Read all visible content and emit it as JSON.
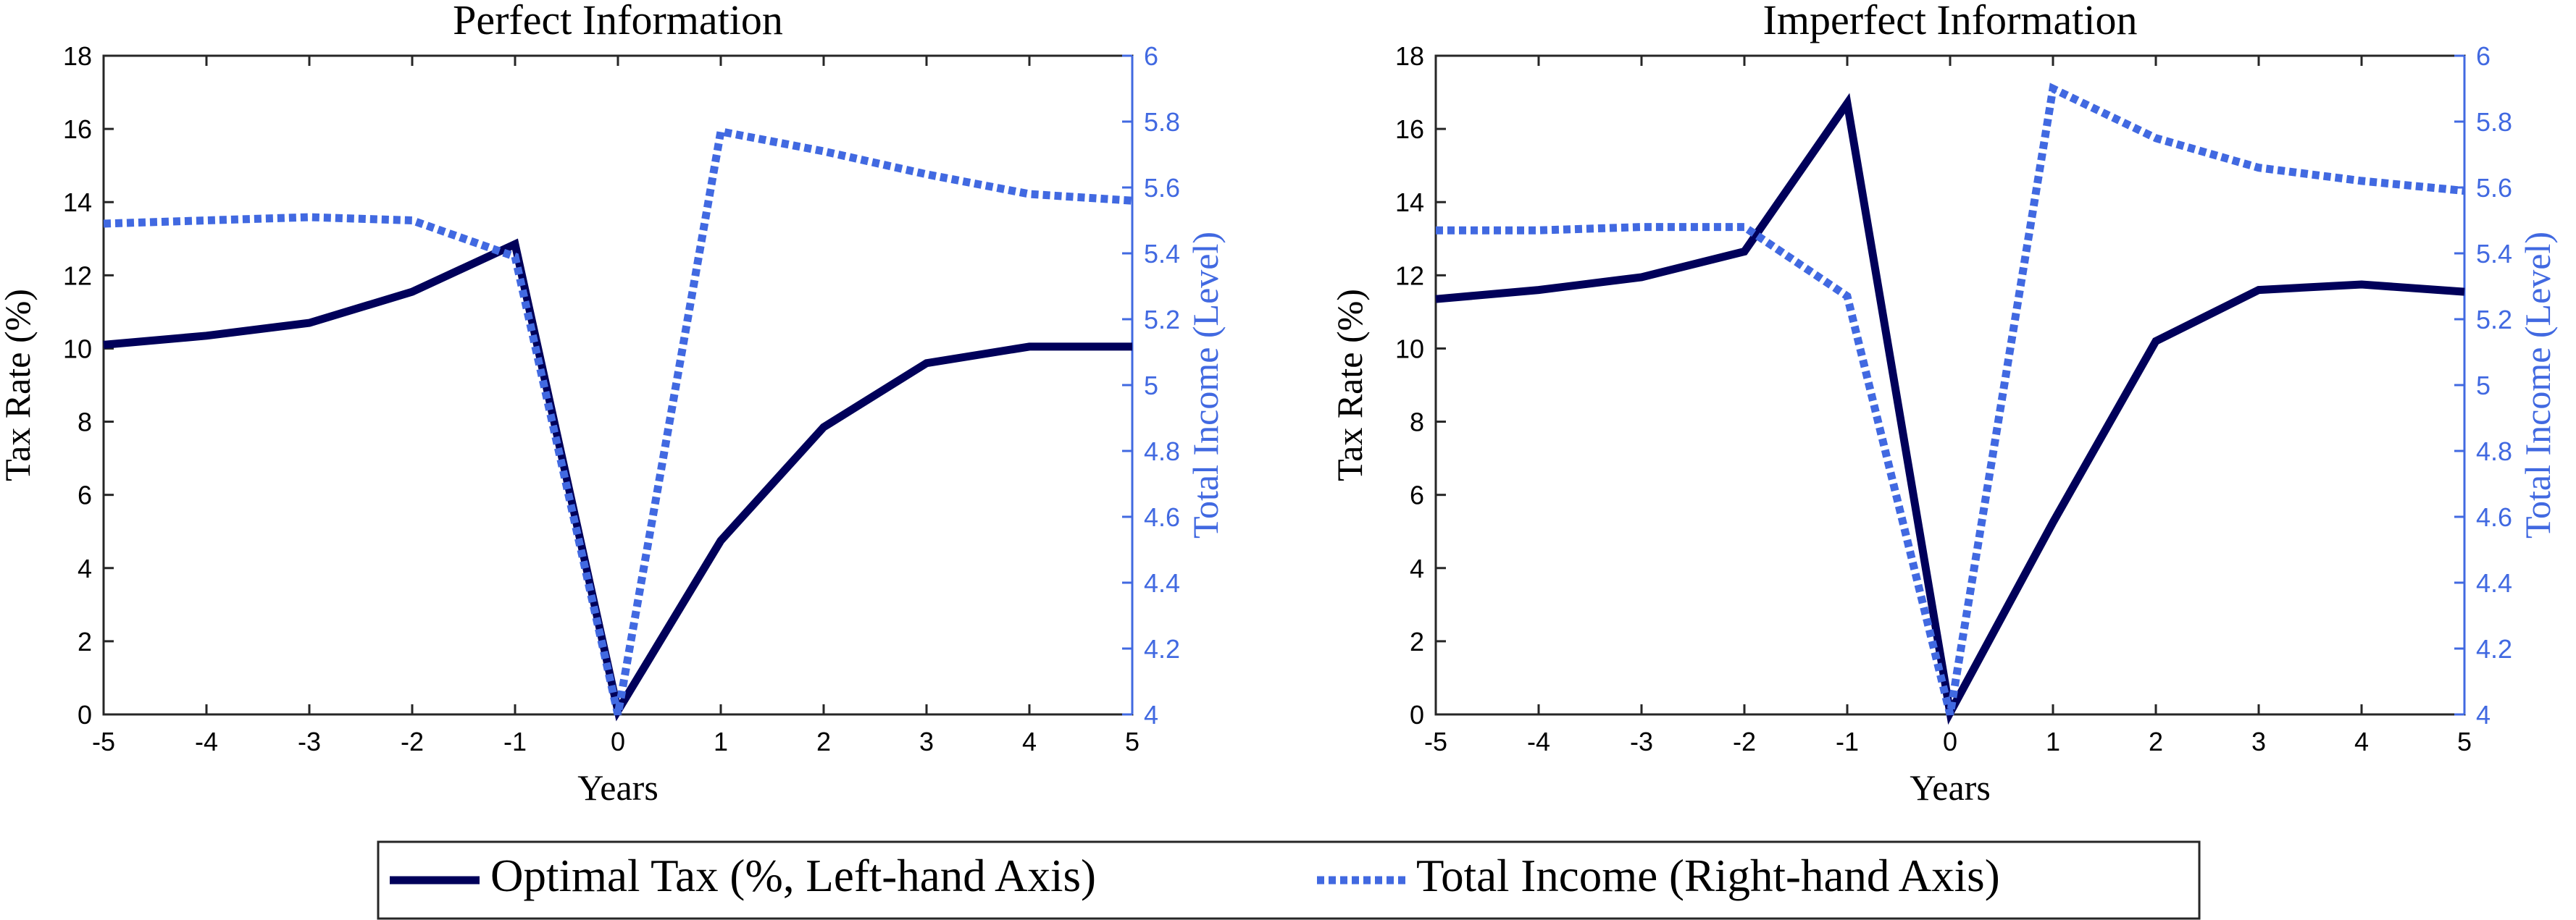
{
  "colors": {
    "tax": "#00005a",
    "income": "#4169e1",
    "axis": "#262626",
    "text": "#000000"
  },
  "legend": {
    "tax_label": "Optimal Tax (%, Left-hand Axis)",
    "income_label": "Total Income (Right-hand Axis)"
  },
  "chart_data": [
    {
      "type": "line",
      "title": "Perfect Information",
      "xlabel": "Years",
      "ylabel": "Tax Rate (%)",
      "y2label": "Total Income (Level)",
      "xlim": [
        -5,
        5
      ],
      "ylim": [
        0,
        18
      ],
      "y2lim": [
        4,
        6
      ],
      "x_ticks": [
        "-5",
        "-4",
        "-3",
        "-2",
        "-1",
        "0",
        "1",
        "2",
        "3",
        "4",
        "5"
      ],
      "y_ticks": [
        "0",
        "2",
        "4",
        "6",
        "8",
        "10",
        "12",
        "14",
        "16",
        "18"
      ],
      "y2_ticks": [
        "4",
        "4.2",
        "4.4",
        "4.6",
        "4.8",
        "5",
        "5.2",
        "5.4",
        "5.6",
        "5.8",
        "6"
      ],
      "x": [
        -5,
        -4,
        -3,
        -2,
        -1,
        0,
        1,
        2,
        3,
        4,
        5
      ],
      "series": [
        {
          "name": "Optimal Tax (%, Left-hand Axis)",
          "axis": "left",
          "style": "solid",
          "values": [
            10.1,
            10.35,
            10.7,
            11.55,
            12.85,
            0.1,
            4.75,
            7.85,
            9.6,
            10.05,
            10.05
          ]
        },
        {
          "name": "Total Income (Right-hand Axis)",
          "axis": "right",
          "style": "dotted",
          "values": [
            5.49,
            5.5,
            5.51,
            5.5,
            5.39,
            4.0,
            5.77,
            5.71,
            5.64,
            5.58,
            5.56
          ]
        }
      ]
    },
    {
      "type": "line",
      "title": "Imperfect Information",
      "xlabel": "Years",
      "ylabel": "Tax Rate (%)",
      "y2label": "Total Income (Level)",
      "xlim": [
        -5,
        5
      ],
      "ylim": [
        0,
        18
      ],
      "y2lim": [
        4,
        6
      ],
      "x_ticks": [
        "-5",
        "-4",
        "-3",
        "-2",
        "-1",
        "0",
        "1",
        "2",
        "3",
        "4",
        "5"
      ],
      "y_ticks": [
        "0",
        "2",
        "4",
        "6",
        "8",
        "10",
        "12",
        "14",
        "16",
        "18"
      ],
      "y2_ticks": [
        "4",
        "4.2",
        "4.4",
        "4.6",
        "4.8",
        "5",
        "5.2",
        "5.4",
        "5.6",
        "5.8",
        "6"
      ],
      "x": [
        -5,
        -4,
        -3,
        -2,
        -1,
        0,
        1,
        2,
        3,
        4,
        5
      ],
      "series": [
        {
          "name": "Optimal Tax (%, Left-hand Axis)",
          "axis": "left",
          "style": "solid",
          "values": [
            11.35,
            11.6,
            11.95,
            12.65,
            16.7,
            0.05,
            5.25,
            10.2,
            11.6,
            11.75,
            11.55
          ]
        },
        {
          "name": "Total Income (Right-hand Axis)",
          "axis": "right",
          "style": "dotted",
          "values": [
            5.47,
            5.47,
            5.48,
            5.48,
            5.27,
            4.0,
            5.9,
            5.75,
            5.66,
            5.62,
            5.59
          ]
        }
      ]
    }
  ]
}
